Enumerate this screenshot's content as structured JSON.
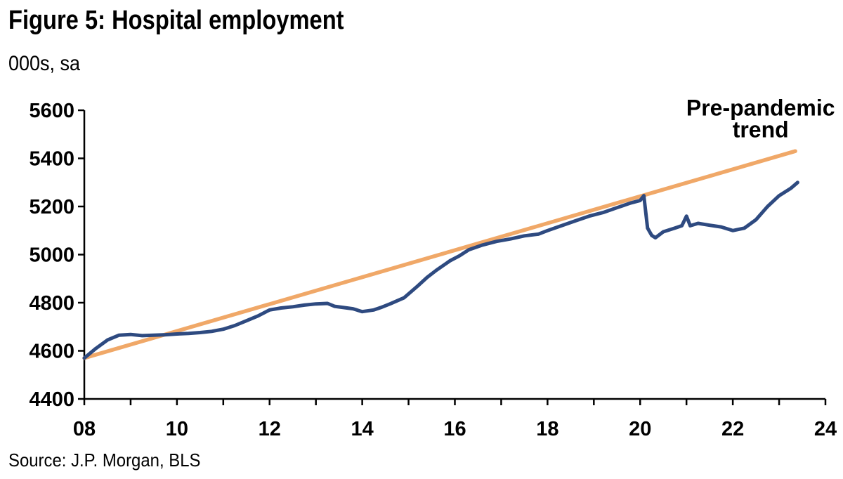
{
  "header": {
    "title": "Figure 5: Hospital employment",
    "subtitle": "000s, sa"
  },
  "footer": {
    "source": "Source: J.P. Morgan, BLS"
  },
  "chart_data": {
    "type": "line",
    "title": "Figure 5: Hospital employment",
    "subtitle": "000s, sa",
    "xlim": [
      8,
      24
    ],
    "ylim": [
      4400,
      5600
    ],
    "x_ticks": [
      8,
      10,
      12,
      14,
      16,
      18,
      20,
      22,
      24
    ],
    "x_tick_labels": [
      "08",
      "10",
      "12",
      "14",
      "16",
      "18",
      "20",
      "22",
      "24"
    ],
    "y_ticks": [
      4400,
      4600,
      4800,
      5000,
      5200,
      5400,
      5600
    ],
    "y_tick_labels": [
      "4400",
      "4600",
      "4800",
      "5000",
      "5200",
      "5400",
      "5600"
    ],
    "grid": false,
    "legend": "none",
    "annotations": [
      {
        "text": "Pre-pandemic",
        "x": 22.6,
        "y": 5610
      },
      {
        "text": "trend",
        "x": 22.6,
        "y": 5520
      }
    ],
    "series": [
      {
        "color": "#2e4a80",
        "x": [
          8.0,
          8.25,
          8.5,
          8.75,
          9.0,
          9.25,
          9.5,
          9.75,
          10.0,
          10.25,
          10.5,
          10.75,
          11.0,
          11.25,
          11.5,
          11.75,
          12.0,
          12.25,
          12.5,
          12.75,
          13.0,
          13.25,
          13.4,
          13.6,
          13.8,
          14.0,
          14.25,
          14.4,
          14.6,
          14.9,
          15.2,
          15.4,
          15.6,
          15.9,
          16.1,
          16.3,
          16.6,
          16.9,
          17.2,
          17.5,
          17.8,
          18.0,
          18.3,
          18.6,
          18.9,
          19.2,
          19.5,
          19.8,
          20.0,
          20.08,
          20.16,
          20.25,
          20.33,
          20.5,
          20.75,
          20.9,
          21.0,
          21.08,
          21.25,
          21.5,
          21.75,
          22.0,
          22.25,
          22.5,
          22.75,
          23.0,
          23.25,
          23.4
        ],
        "y": [
          4570,
          4610,
          4645,
          4665,
          4668,
          4663,
          4665,
          4667,
          4670,
          4672,
          4676,
          4681,
          4690,
          4705,
          4725,
          4745,
          4770,
          4778,
          4783,
          4790,
          4795,
          4797,
          4785,
          4780,
          4775,
          4763,
          4770,
          4780,
          4795,
          4820,
          4870,
          4905,
          4935,
          4975,
          4995,
          5020,
          5040,
          5055,
          5065,
          5078,
          5085,
          5100,
          5120,
          5140,
          5160,
          5175,
          5195,
          5215,
          5225,
          5245,
          5110,
          5080,
          5070,
          5095,
          5110,
          5120,
          5160,
          5120,
          5130,
          5122,
          5115,
          5100,
          5110,
          5145,
          5200,
          5245,
          5275,
          5300
        ]
      },
      {
        "color": "#f0a868",
        "x": [
          8.0,
          23.35
        ],
        "y": [
          4570,
          5430
        ]
      }
    ]
  }
}
